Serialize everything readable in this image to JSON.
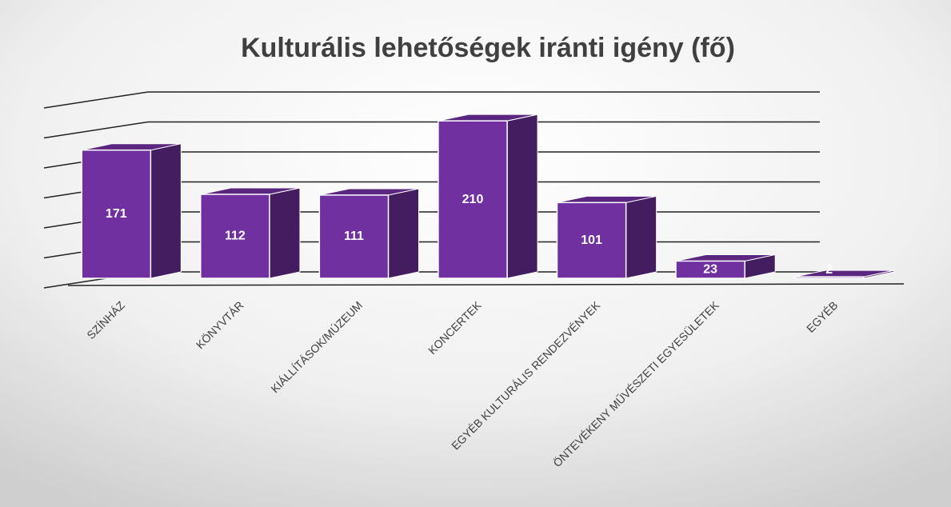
{
  "chart_data": {
    "type": "bar3d",
    "title": "Kulturális lehetőségek iránti igény (fő)",
    "categories": [
      "SZÍNHÁZ",
      "KÖNYVTÁR",
      "KIÁLLÍTÁSOK/MÚZEUM",
      "KONCERTEK",
      "EGYÉB KULTURÁLIS RENDEZVÉNYEK",
      "ÖNTEVÉKENY MŰVÉSZETI EGYESÜLETEK",
      "EGYÉB"
    ],
    "values": [
      171,
      112,
      111,
      210,
      101,
      23,
      2
    ],
    "color": "#7030a0",
    "ylim": [
      0,
      240
    ],
    "yticks": [
      0,
      40,
      80,
      120,
      160,
      200,
      240
    ],
    "grid": true
  }
}
